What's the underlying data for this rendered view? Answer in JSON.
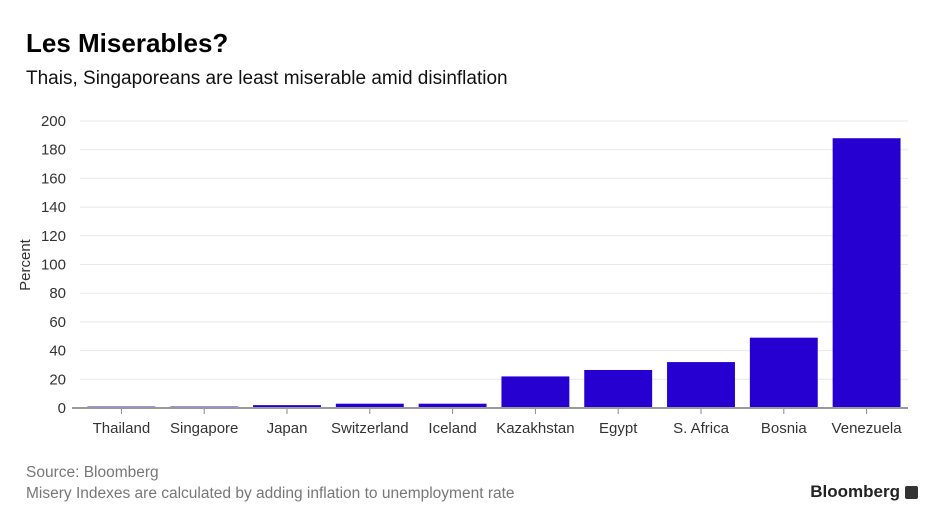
{
  "chart_data": {
    "type": "bar",
    "title": "Les Miserables?",
    "subtitle": "Thais, Singaporeans are least miserable amid disinflation",
    "categories": [
      "Thailand",
      "Singapore",
      "Japan",
      "Switzerland",
      "Iceland",
      "Kazakhstan",
      "Egypt",
      "S. Africa",
      "Bosnia",
      "Venezuela"
    ],
    "values": [
      1,
      1,
      2,
      3,
      3,
      22,
      26.5,
      32,
      49,
      188
    ],
    "xlabel": "",
    "ylabel": "Percent",
    "ylim": [
      0,
      200
    ],
    "yticks": [
      0,
      20,
      40,
      60,
      80,
      100,
      120,
      140,
      160,
      180,
      200
    ],
    "grid": true,
    "bar_color": "#2600d1"
  },
  "footer": {
    "source": "Source: Bloomberg",
    "note": "Misery Indexes are calculated by adding inflation to unemployment rate",
    "logo": "Bloomberg"
  }
}
